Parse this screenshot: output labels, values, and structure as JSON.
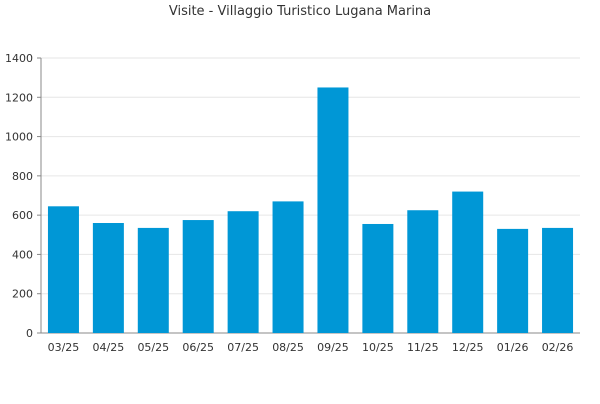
{
  "chart_data": {
    "type": "bar",
    "title": "Visite - Villaggio Turistico Lugana Marina",
    "xlabel": "",
    "ylabel": "",
    "categories": [
      "03/25",
      "04/25",
      "05/25",
      "06/25",
      "07/25",
      "08/25",
      "09/25",
      "10/25",
      "11/25",
      "12/25",
      "01/26",
      "02/26"
    ],
    "values": [
      645,
      560,
      535,
      575,
      620,
      670,
      1250,
      555,
      625,
      720,
      530,
      535
    ],
    "ylim": [
      0,
      1400
    ],
    "yticks": [
      0,
      200,
      400,
      600,
      800,
      1000,
      1200,
      1400
    ],
    "grid": true,
    "legend": "none",
    "bar_color": "#0097d6"
  }
}
